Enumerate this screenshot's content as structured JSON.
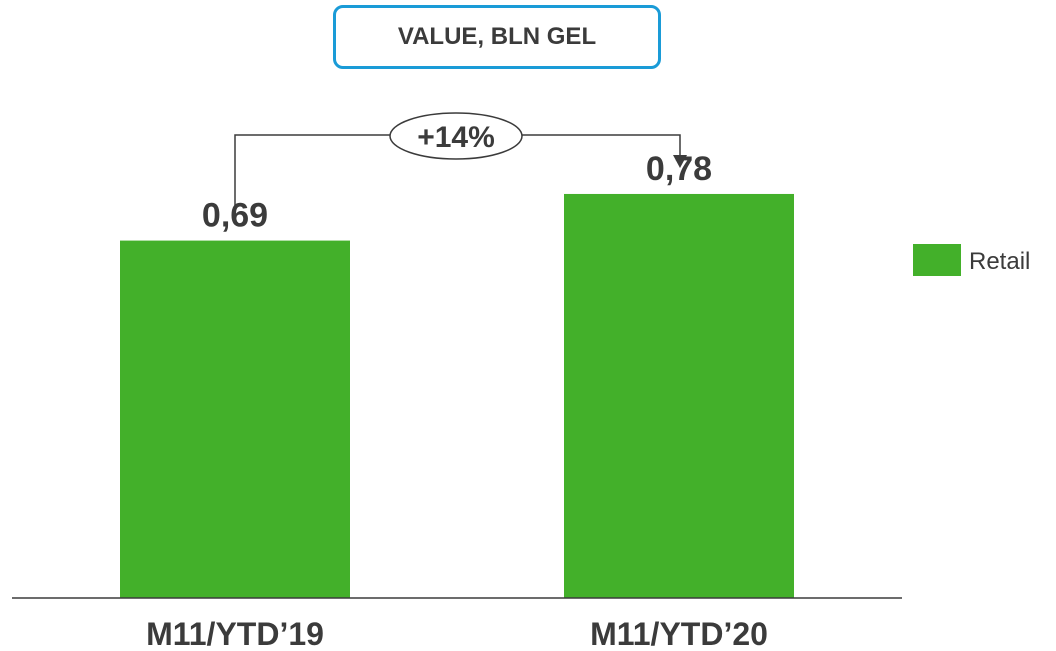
{
  "chart_data": {
    "type": "bar",
    "title": "VALUE, BLN GEL",
    "categories": [
      "M11/YTD’19",
      "M11/YTD’20"
    ],
    "series": [
      {
        "name": "Retail",
        "color": "#43b02a",
        "values": [
          0.69,
          0.78
        ]
      }
    ],
    "data_labels": [
      "0,69",
      "0,78"
    ],
    "annotation": {
      "text": "+14%",
      "type": "growth-arrow",
      "from": "M11/YTD’19",
      "to": "M11/YTD’20"
    },
    "legend": {
      "position": "right",
      "entries": [
        "Retail"
      ]
    },
    "ylim": [
      0,
      1.0
    ],
    "grid": false,
    "xlabel": "",
    "ylabel": ""
  },
  "colors": {
    "bar": "#43b02a",
    "text": "#3b3b3b",
    "title_border": "#1a9bd7",
    "axis": "#3b3b3b"
  }
}
